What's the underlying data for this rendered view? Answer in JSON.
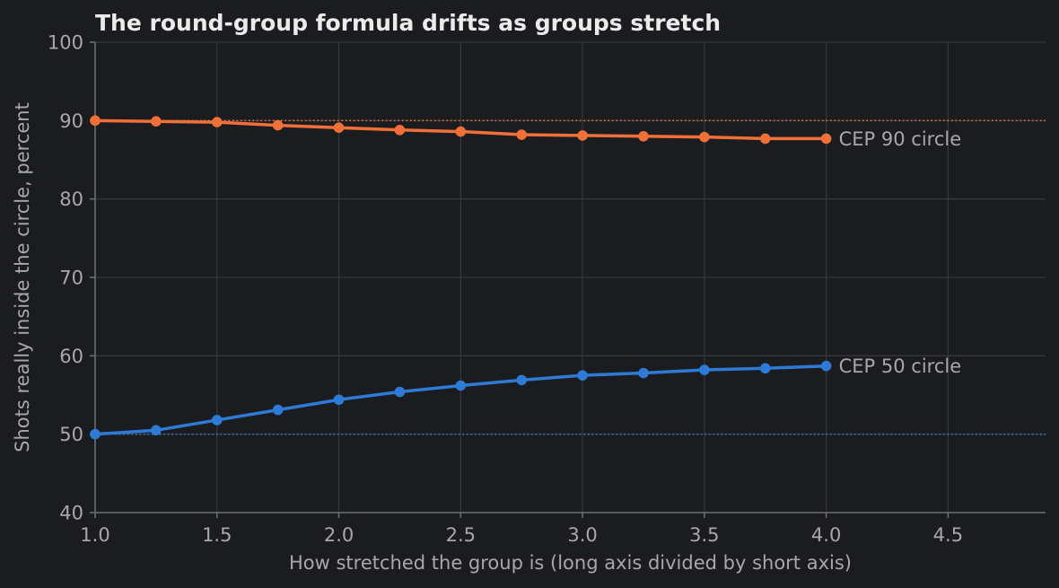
{
  "chart_data": {
    "type": "line",
    "title": "The round-group formula drifts as groups stretch",
    "xlabel": "How stretched the group is (long axis divided by short axis)",
    "ylabel": "Shots really inside the circle, percent",
    "xlim": [
      1.0,
      4.9
    ],
    "ylim": [
      40,
      100
    ],
    "x_ticks": [
      "1.0",
      "1.5",
      "2.0",
      "2.5",
      "3.0",
      "3.5",
      "4.0",
      "4.5"
    ],
    "y_ticks": [
      "40",
      "50",
      "60",
      "70",
      "80",
      "90",
      "100"
    ],
    "grid": true,
    "x": [
      1.0,
      1.25,
      1.5,
      1.75,
      2.0,
      2.25,
      2.5,
      2.75,
      3.0,
      3.25,
      3.5,
      3.75,
      4.0
    ],
    "series": [
      {
        "name": "CEP 90 circle",
        "color": "#f07038",
        "values": [
          90.0,
          89.9,
          89.8,
          89.4,
          89.1,
          88.8,
          88.6,
          88.2,
          88.1,
          88.0,
          87.9,
          87.7,
          87.7
        ]
      },
      {
        "name": "CEP 50 circle",
        "color": "#2d7bd6",
        "values": [
          50.0,
          50.5,
          51.8,
          53.1,
          54.4,
          55.4,
          56.2,
          56.9,
          57.5,
          57.8,
          58.2,
          58.4,
          58.7
        ]
      }
    ],
    "reference_lines": [
      {
        "y": 90,
        "color": "#f07038"
      },
      {
        "y": 50,
        "color": "#2d7bd6"
      }
    ]
  }
}
